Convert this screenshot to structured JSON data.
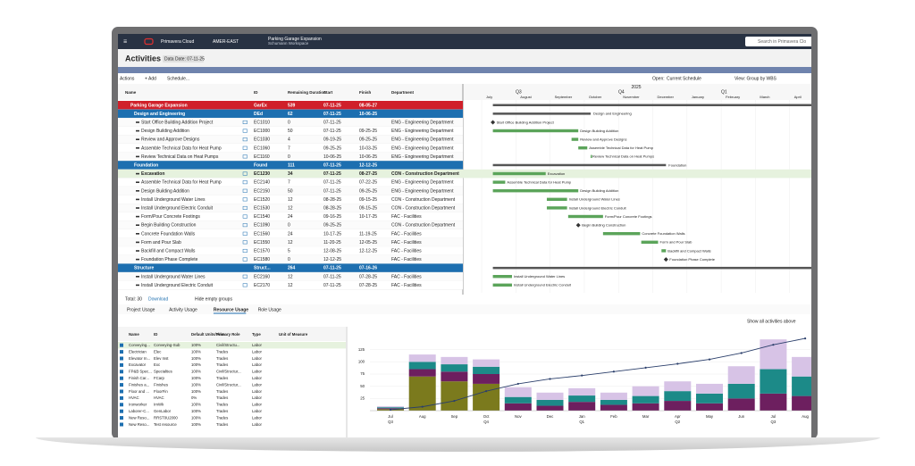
{
  "nav": {
    "brand": "Primavera Cloud",
    "region": "AMER-EAST",
    "project": "Parking Garage Expansion",
    "workspace": "Schumann Workspace",
    "search": "Search in Primavera Clo"
  },
  "page": {
    "title": "Activities",
    "data_date": "Data Date: 07-11-25"
  },
  "toolbar": {
    "actions": "Actions",
    "add": "+ Add",
    "schedule": "Schedule...",
    "open": "Open:",
    "open_value": "Current Schedule",
    "view": "View: Group by WBS"
  },
  "table": {
    "columns": [
      "Name",
      "ID",
      "Remaining Duration",
      "Start",
      "Finish",
      "Department"
    ],
    "rows": [
      {
        "kind": "project",
        "cells": [
          "Parking Garage Expansion",
          "GarEx",
          "539",
          "07-11-25",
          "08-05-27",
          ""
        ]
      },
      {
        "kind": "wbs",
        "cells": [
          "Design and Engineering",
          "DEd",
          "62",
          "07-11-25",
          "10-06-25",
          ""
        ]
      },
      {
        "kind": "milestone",
        "cells": [
          "Start Office Building Addition Project",
          "EC1010",
          "0",
          "07-11-25",
          "",
          "ENG - Engineering Department"
        ]
      },
      {
        "kind": "task",
        "cells": [
          "Design Building Addition",
          "EC1000",
          "50",
          "07-11-25",
          "09-25-25",
          "ENG - Engineering Department"
        ]
      },
      {
        "kind": "task",
        "cells": [
          "Review and Approve Designs",
          "EC1030",
          "4",
          "09-19-25",
          "09-25-25",
          "ENG - Engineering Department"
        ]
      },
      {
        "kind": "task",
        "cells": [
          "Assemble Technical Data for Heat Pump",
          "EC1060",
          "7",
          "09-25-25",
          "10-03-25",
          "ENG - Engineering Department"
        ]
      },
      {
        "kind": "task",
        "cells": [
          "Review Technical Data on Heat Pumps",
          "EC1160",
          "0",
          "10-06-25",
          "10-06-25",
          "ENG - Engineering Department"
        ]
      },
      {
        "kind": "wbs",
        "cells": [
          "Foundation",
          "Found",
          "111",
          "07-11-25",
          "12-12-25",
          ""
        ]
      },
      {
        "kind": "selected",
        "cells": [
          "Excavation",
          "EC1230",
          "34",
          "07-11-25",
          "08-27-25",
          "CON - Construction Department"
        ]
      },
      {
        "kind": "task",
        "cells": [
          "Assemble Technical Data for Heat Pump",
          "EC2140",
          "7",
          "07-11-25",
          "07-22-25",
          "ENG - Engineering Department"
        ]
      },
      {
        "kind": "task",
        "cells": [
          "Design Building Addition",
          "EC2150",
          "50",
          "07-11-25",
          "09-25-25",
          "ENG - Engineering Department"
        ]
      },
      {
        "kind": "task",
        "cells": [
          "Install Underground Water Lines",
          "EC1520",
          "12",
          "08-28-25",
          "09-15-25",
          "CON - Construction Department"
        ]
      },
      {
        "kind": "task",
        "cells": [
          "Install Underground Electric Conduit",
          "EC1530",
          "12",
          "08-28-25",
          "09-15-25",
          "CON - Construction Department"
        ]
      },
      {
        "kind": "task",
        "cells": [
          "Form/Pour Concrete Footings",
          "EC1540",
          "24",
          "09-16-25",
          "10-17-25",
          "FAC - Facilities"
        ]
      },
      {
        "kind": "milestone",
        "cells": [
          "Begin Building Construction",
          "EC1090",
          "0",
          "09-25-25",
          "",
          "CON - Construction Department"
        ]
      },
      {
        "kind": "task",
        "cells": [
          "Concrete Foundation Walls",
          "EC1560",
          "24",
          "10-17-25",
          "11-19-25",
          "FAC - Facilities"
        ]
      },
      {
        "kind": "task",
        "cells": [
          "Form and Pour Slab",
          "EC1550",
          "12",
          "11-20-25",
          "12-05-25",
          "FAC - Facilities"
        ]
      },
      {
        "kind": "task",
        "cells": [
          "Backfill and Compact Walls",
          "EC1570",
          "5",
          "12-08-25",
          "12-12-25",
          "FAC - Facilities"
        ]
      },
      {
        "kind": "milestone",
        "cells": [
          "Foundation Phase Complete",
          "EC1580",
          "0",
          "12-12-25",
          "",
          "FAC - Facilities"
        ]
      },
      {
        "kind": "wbs",
        "cells": [
          "Structure",
          "Struct...",
          "264",
          "07-11-25",
          "07-16-26",
          ""
        ]
      },
      {
        "kind": "task",
        "cells": [
          "Install Underground Water Lines",
          "EC2160",
          "12",
          "07-11-25",
          "07-28-25",
          "FAC - Facilities"
        ]
      },
      {
        "kind": "task",
        "cells": [
          "Install Underground Electric Conduit",
          "EC2170",
          "12",
          "07-11-25",
          "07-28-25",
          "FAC - Facilities"
        ]
      }
    ]
  },
  "gantt": {
    "year": "2025",
    "quarters": [
      "Q3",
      "Q4",
      "Q1"
    ],
    "months": [
      "July",
      "August",
      "September",
      "October",
      "November",
      "December",
      "January",
      "February",
      "March",
      "April"
    ]
  },
  "footer": {
    "total": "Total: 30",
    "download": "Download",
    "hide": "Hide empty groups"
  },
  "tabs": [
    "Project Usage",
    "Activity Usage",
    "Resource Usage",
    "Role Usage"
  ],
  "active_tab": 2,
  "show_all": "Show all activities above",
  "resources": {
    "columns": [
      "Name",
      "ID",
      "Default Units/Time",
      "Primary Role",
      "Type",
      "Unit of Measure"
    ],
    "rows": [
      [
        "Conveying...",
        "Conveying-Sub",
        "100%",
        "Civil/Structu...",
        "Labor"
      ],
      [
        "Electrician",
        "Elec",
        "100%",
        "Trades",
        "Labor"
      ],
      [
        "Elevator In...",
        "Elev Inst",
        "100%",
        "Trades",
        "Labor"
      ],
      [
        "Excavator",
        "Exc",
        "100%",
        "Trades",
        "Labor"
      ],
      [
        "FP&B Spec...",
        "Specialties",
        "100%",
        "Civil/Structur...",
        "Labor"
      ],
      [
        "Finish Car...",
        "FCarp",
        "100%",
        "Trades",
        "Labor"
      ],
      [
        "Finishes a...",
        "Finishes",
        "100%",
        "Civil/Structur...",
        "Labor"
      ],
      [
        "Floor and ...",
        "FloorFin",
        "100%",
        "Trades",
        "Labor"
      ],
      [
        "HVAC",
        "HVAC",
        "0%",
        "Trades",
        "Labor"
      ],
      [
        "Ironworker",
        "IrnWk",
        "100%",
        "Trades",
        "Labor"
      ],
      [
        "Laborer-C...",
        "GenLabor",
        "100%",
        "Trades",
        "Labor"
      ],
      [
        "New Reso...",
        "RRST0U2000",
        "100%",
        "Trades",
        "Labor"
      ],
      [
        "New Reso...",
        "Test resource",
        "100%",
        "Trades",
        "Labor"
      ]
    ]
  },
  "usage_chart": {
    "type": "bar",
    "stacked": true,
    "categories": [
      "Jul",
      "Aug",
      "Sep",
      "Oct",
      "Nov",
      "Dec",
      "Jan",
      "Feb",
      "Mar",
      "Apr",
      "May",
      "Jun",
      "Jul",
      "Aug"
    ],
    "quarters": [
      "Q3",
      null,
      null,
      "Q4",
      null,
      null,
      "Q1",
      null,
      null,
      "Q2",
      null,
      null,
      "Q3",
      null
    ],
    "ylim": [
      0,
      150
    ],
    "yticks": [
      25,
      50,
      75,
      100,
      125
    ],
    "grid": true,
    "series": [
      {
        "color": "#7b7a1d",
        "values": [
          3,
          70,
          60,
          55,
          0,
          0,
          0,
          0,
          0,
          0,
          0,
          0,
          0,
          0
        ]
      },
      {
        "color": "#6d1f5f",
        "values": [
          2,
          15,
          20,
          20,
          15,
          10,
          18,
          12,
          15,
          20,
          15,
          25,
          35,
          30
        ]
      },
      {
        "color": "#1c8a88",
        "values": [
          2,
          15,
          15,
          15,
          13,
          12,
          13,
          10,
          15,
          20,
          20,
          30,
          50,
          40
        ]
      },
      {
        "color": "#d7c3e6",
        "values": [
          2,
          15,
          15,
          15,
          20,
          15,
          15,
          15,
          20,
          20,
          20,
          36,
          61,
          40
        ]
      }
    ],
    "line": {
      "color": "#2b3f6b",
      "values": [
        2,
        8,
        20,
        40,
        55,
        65,
        72,
        80,
        88,
        96,
        105,
        118,
        135,
        148
      ]
    }
  }
}
